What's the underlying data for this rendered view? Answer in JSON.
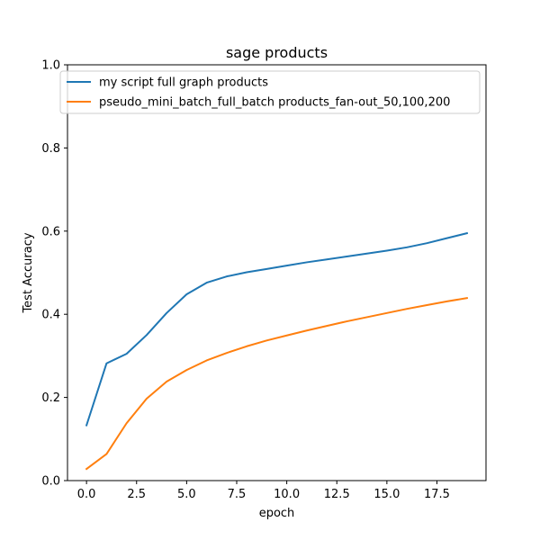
{
  "chart_data": {
    "type": "line",
    "title": "sage products",
    "xlabel": "epoch",
    "ylabel": "Test Accuracy",
    "xlim": [
      -0.95,
      19.95
    ],
    "ylim": [
      0.0,
      1.0
    ],
    "xticks": [
      0.0,
      2.5,
      5.0,
      7.5,
      10.0,
      12.5,
      15.0,
      17.5
    ],
    "xtick_labels": [
      "0.0",
      "2.5",
      "5.0",
      "7.5",
      "10.0",
      "12.5",
      "15.0",
      "17.5"
    ],
    "yticks": [
      0.0,
      0.2,
      0.4,
      0.6,
      0.8,
      1.0
    ],
    "ytick_labels": [
      "0.0",
      "0.2",
      "0.4",
      "0.6",
      "0.8",
      "1.0"
    ],
    "grid": false,
    "legend_position": "top-left",
    "x": [
      0,
      1,
      2,
      3,
      4,
      5,
      6,
      7,
      8,
      9,
      10,
      11,
      12,
      13,
      14,
      15,
      16,
      17,
      18,
      19
    ],
    "series": [
      {
        "name": "my script full graph products",
        "color": "#1f77b4",
        "values": [
          0.133,
          0.282,
          0.305,
          0.35,
          0.403,
          0.448,
          0.476,
          0.491,
          0.501,
          0.509,
          0.517,
          0.525,
          0.532,
          0.539,
          0.546,
          0.553,
          0.561,
          0.571,
          0.583,
          0.595
        ]
      },
      {
        "name": "pseudo_mini_batch_full_batch products_fan-out_50,100,200",
        "color": "#ff7f0e",
        "values": [
          0.028,
          0.064,
          0.138,
          0.197,
          0.238,
          0.266,
          0.289,
          0.307,
          0.323,
          0.337,
          0.349,
          0.361,
          0.372,
          0.383,
          0.393,
          0.403,
          0.413,
          0.422,
          0.431,
          0.439
        ]
      }
    ]
  }
}
